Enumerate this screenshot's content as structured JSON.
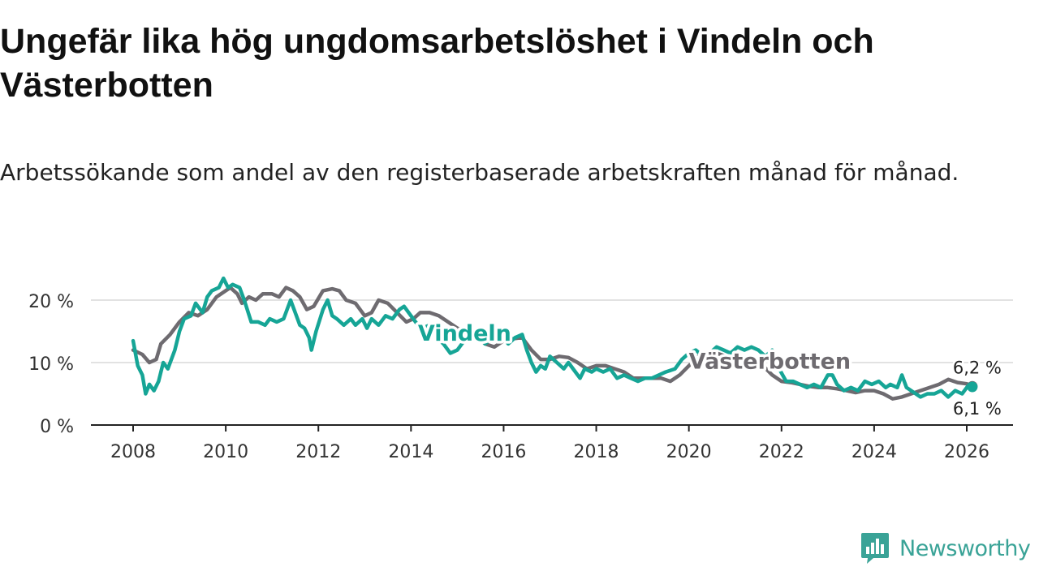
{
  "chart_data": {
    "type": "line",
    "title": "Ungefär lika hög ungdomsarbetslöshet i Vindeln och Västerbotten",
    "subtitle": "Arbetssökande som andel av den registerbaserade arbetskraften månad för månad.",
    "xlabel": "",
    "ylabel": "",
    "xlim": [
      2007.5,
      2027.0
    ],
    "ylim": [
      0,
      20
    ],
    "x_ticks": [
      2008,
      2010,
      2012,
      2014,
      2016,
      2018,
      2020,
      2022,
      2024,
      2026
    ],
    "x_tick_labels": [
      "2008",
      "2010",
      "2012",
      "2014",
      "2016",
      "2018",
      "2020",
      "2022",
      "2024",
      "2026"
    ],
    "y_ticks": [
      0,
      10,
      20
    ],
    "y_tick_labels": [
      "0 %",
      "10 %",
      "20 %"
    ],
    "grid": true,
    "series": [
      {
        "name": "Västerbotten",
        "color": "#6e6b70",
        "end_label": "6,2 %",
        "points": [
          [
            2008.0,
            12.0
          ],
          [
            2008.2,
            11.3
          ],
          [
            2008.35,
            10.0
          ],
          [
            2008.5,
            10.5
          ],
          [
            2008.6,
            13.0
          ],
          [
            2008.8,
            14.5
          ],
          [
            2009.0,
            16.5
          ],
          [
            2009.2,
            18.0
          ],
          [
            2009.4,
            17.5
          ],
          [
            2009.6,
            18.5
          ],
          [
            2009.8,
            20.5
          ],
          [
            2010.0,
            21.5
          ],
          [
            2010.1,
            22.0
          ],
          [
            2010.25,
            21.0
          ],
          [
            2010.35,
            19.5
          ],
          [
            2010.5,
            20.5
          ],
          [
            2010.65,
            20.0
          ],
          [
            2010.8,
            21.0
          ],
          [
            2011.0,
            21.0
          ],
          [
            2011.15,
            20.5
          ],
          [
            2011.3,
            22.0
          ],
          [
            2011.45,
            21.5
          ],
          [
            2011.6,
            20.5
          ],
          [
            2011.75,
            18.5
          ],
          [
            2011.9,
            19.0
          ],
          [
            2012.1,
            21.5
          ],
          [
            2012.3,
            21.8
          ],
          [
            2012.45,
            21.5
          ],
          [
            2012.6,
            20.0
          ],
          [
            2012.8,
            19.5
          ],
          [
            2013.0,
            17.5
          ],
          [
            2013.15,
            18.0
          ],
          [
            2013.3,
            20.0
          ],
          [
            2013.5,
            19.5
          ],
          [
            2013.7,
            18.0
          ],
          [
            2013.9,
            16.5
          ],
          [
            2014.05,
            17.0
          ],
          [
            2014.2,
            18.0
          ],
          [
            2014.4,
            18.0
          ],
          [
            2014.6,
            17.5
          ],
          [
            2014.8,
            16.5
          ],
          [
            2015.0,
            15.5
          ],
          [
            2015.2,
            15.0
          ],
          [
            2015.4,
            14.5
          ],
          [
            2015.6,
            13.0
          ],
          [
            2015.8,
            12.5
          ],
          [
            2016.0,
            13.5
          ],
          [
            2016.2,
            13.8
          ],
          [
            2016.4,
            14.0
          ],
          [
            2016.6,
            12.0
          ],
          [
            2016.8,
            10.5
          ],
          [
            2017.0,
            10.5
          ],
          [
            2017.2,
            11.0
          ],
          [
            2017.4,
            10.8
          ],
          [
            2017.6,
            10.0
          ],
          [
            2017.8,
            9.0
          ],
          [
            2018.0,
            9.5
          ],
          [
            2018.2,
            9.5
          ],
          [
            2018.4,
            9.0
          ],
          [
            2018.6,
            8.5
          ],
          [
            2018.8,
            7.5
          ],
          [
            2019.0,
            7.5
          ],
          [
            2019.2,
            7.5
          ],
          [
            2019.4,
            7.5
          ],
          [
            2019.6,
            7.0
          ],
          [
            2019.8,
            8.0
          ],
          [
            2020.0,
            9.5
          ],
          [
            2020.2,
            11.0
          ],
          [
            2020.4,
            11.5
          ],
          [
            2020.6,
            11.5
          ],
          [
            2020.8,
            11.0
          ],
          [
            2021.0,
            11.0
          ],
          [
            2021.2,
            10.5
          ],
          [
            2021.4,
            10.0
          ],
          [
            2021.6,
            9.5
          ],
          [
            2021.8,
            8.0
          ],
          [
            2022.0,
            7.0
          ],
          [
            2022.2,
            6.8
          ],
          [
            2022.4,
            6.5
          ],
          [
            2022.6,
            6.2
          ],
          [
            2022.8,
            6.0
          ],
          [
            2023.0,
            6.0
          ],
          [
            2023.2,
            5.8
          ],
          [
            2023.4,
            5.5
          ],
          [
            2023.6,
            5.2
          ],
          [
            2023.8,
            5.5
          ],
          [
            2024.0,
            5.5
          ],
          [
            2024.2,
            5.0
          ],
          [
            2024.4,
            4.2
          ],
          [
            2024.6,
            4.5
          ],
          [
            2024.8,
            5.0
          ],
          [
            2025.0,
            5.5
          ],
          [
            2025.2,
            6.0
          ],
          [
            2025.4,
            6.5
          ],
          [
            2025.6,
            7.3
          ],
          [
            2025.8,
            6.8
          ],
          [
            2026.0,
            6.6
          ],
          [
            2026.12,
            6.2
          ]
        ]
      },
      {
        "name": "Vindeln",
        "color": "#16a596",
        "end_label": "6,1 %",
        "points": [
          [
            2008.0,
            13.5
          ],
          [
            2008.1,
            9.5
          ],
          [
            2008.2,
            8.0
          ],
          [
            2008.27,
            5.0
          ],
          [
            2008.35,
            6.5
          ],
          [
            2008.45,
            5.5
          ],
          [
            2008.55,
            7.0
          ],
          [
            2008.65,
            10.0
          ],
          [
            2008.75,
            9.0
          ],
          [
            2008.9,
            12.0
          ],
          [
            2009.0,
            15.0
          ],
          [
            2009.1,
            17.0
          ],
          [
            2009.25,
            17.5
          ],
          [
            2009.35,
            19.5
          ],
          [
            2009.5,
            18.0
          ],
          [
            2009.6,
            20.5
          ],
          [
            2009.7,
            21.5
          ],
          [
            2009.85,
            22.0
          ],
          [
            2009.95,
            23.5
          ],
          [
            2010.05,
            22.0
          ],
          [
            2010.15,
            22.5
          ],
          [
            2010.3,
            22.0
          ],
          [
            2010.4,
            20.0
          ],
          [
            2010.55,
            16.5
          ],
          [
            2010.7,
            16.5
          ],
          [
            2010.85,
            16.0
          ],
          [
            2010.95,
            17.0
          ],
          [
            2011.1,
            16.5
          ],
          [
            2011.25,
            17.0
          ],
          [
            2011.4,
            20.0
          ],
          [
            2011.5,
            18.0
          ],
          [
            2011.6,
            16.0
          ],
          [
            2011.7,
            15.5
          ],
          [
            2011.8,
            14.0
          ],
          [
            2011.85,
            12.0
          ],
          [
            2011.95,
            15.0
          ],
          [
            2012.1,
            18.5
          ],
          [
            2012.2,
            20.0
          ],
          [
            2012.3,
            17.5
          ],
          [
            2012.4,
            17.0
          ],
          [
            2012.55,
            16.0
          ],
          [
            2012.7,
            17.0
          ],
          [
            2012.8,
            16.0
          ],
          [
            2012.95,
            17.0
          ],
          [
            2013.05,
            15.5
          ],
          [
            2013.15,
            17.0
          ],
          [
            2013.3,
            16.0
          ],
          [
            2013.45,
            17.5
          ],
          [
            2013.6,
            17.0
          ],
          [
            2013.75,
            18.5
          ],
          [
            2013.85,
            19.0
          ],
          [
            2014.0,
            17.5
          ],
          [
            2014.15,
            16.0
          ],
          [
            2014.25,
            15.5
          ],
          [
            2014.4,
            16.0
          ],
          [
            2014.55,
            14.0
          ],
          [
            2014.7,
            13.0
          ],
          [
            2014.85,
            11.5
          ],
          [
            2015.0,
            12.0
          ],
          [
            2015.15,
            13.5
          ],
          [
            2015.3,
            15.0
          ],
          [
            2015.45,
            14.5
          ],
          [
            2015.6,
            13.0
          ],
          [
            2015.75,
            14.0
          ],
          [
            2015.9,
            15.5
          ],
          [
            2016.0,
            14.0
          ],
          [
            2016.1,
            13.0
          ],
          [
            2016.25,
            14.0
          ],
          [
            2016.4,
            14.5
          ],
          [
            2016.5,
            12.0
          ],
          [
            2016.6,
            10.0
          ],
          [
            2016.7,
            8.5
          ],
          [
            2016.8,
            9.5
          ],
          [
            2016.9,
            9.0
          ],
          [
            2017.0,
            11.0
          ],
          [
            2017.15,
            10.0
          ],
          [
            2017.3,
            9.0
          ],
          [
            2017.4,
            10.0
          ],
          [
            2017.55,
            8.5
          ],
          [
            2017.65,
            7.5
          ],
          [
            2017.75,
            9.0
          ],
          [
            2017.9,
            8.5
          ],
          [
            2018.0,
            9.0
          ],
          [
            2018.15,
            8.5
          ],
          [
            2018.3,
            9.0
          ],
          [
            2018.45,
            7.5
          ],
          [
            2018.6,
            8.0
          ],
          [
            2018.75,
            7.5
          ],
          [
            2018.9,
            7.0
          ],
          [
            2019.05,
            7.5
          ],
          [
            2019.2,
            7.5
          ],
          [
            2019.35,
            8.0
          ],
          [
            2019.5,
            8.5
          ],
          [
            2019.7,
            9.0
          ],
          [
            2019.85,
            10.5
          ],
          [
            2020.0,
            11.5
          ],
          [
            2020.15,
            12.0
          ],
          [
            2020.3,
            11.0
          ],
          [
            2020.45,
            11.5
          ],
          [
            2020.6,
            12.5
          ],
          [
            2020.75,
            12.0
          ],
          [
            2020.9,
            11.5
          ],
          [
            2021.05,
            12.5
          ],
          [
            2021.2,
            12.0
          ],
          [
            2021.35,
            12.5
          ],
          [
            2021.5,
            12.0
          ],
          [
            2021.65,
            11.0
          ],
          [
            2021.8,
            12.0
          ],
          [
            2021.95,
            9.0
          ],
          [
            2022.1,
            7.0
          ],
          [
            2022.25,
            7.0
          ],
          [
            2022.4,
            6.5
          ],
          [
            2022.55,
            6.0
          ],
          [
            2022.7,
            6.5
          ],
          [
            2022.85,
            6.0
          ],
          [
            2023.0,
            8.0
          ],
          [
            2023.1,
            8.0
          ],
          [
            2023.2,
            6.5
          ],
          [
            2023.35,
            5.5
          ],
          [
            2023.5,
            6.0
          ],
          [
            2023.65,
            5.5
          ],
          [
            2023.8,
            7.0
          ],
          [
            2023.95,
            6.5
          ],
          [
            2024.1,
            7.0
          ],
          [
            2024.25,
            6.0
          ],
          [
            2024.35,
            6.5
          ],
          [
            2024.5,
            6.0
          ],
          [
            2024.6,
            8.0
          ],
          [
            2024.7,
            6.0
          ],
          [
            2024.8,
            5.5
          ],
          [
            2024.9,
            5.0
          ],
          [
            2025.0,
            4.5
          ],
          [
            2025.15,
            5.0
          ],
          [
            2025.3,
            5.0
          ],
          [
            2025.45,
            5.5
          ],
          [
            2025.6,
            4.5
          ],
          [
            2025.75,
            5.5
          ],
          [
            2025.9,
            5.0
          ],
          [
            2026.05,
            6.5
          ],
          [
            2026.12,
            6.1
          ]
        ]
      }
    ],
    "annotations": [
      {
        "text": "Vindeln",
        "x": 2014.15,
        "y": 13.5,
        "color": "#16a596"
      },
      {
        "text": "Västerbotten",
        "x": 2020.0,
        "y": 9.0,
        "color": "#6e6b70"
      }
    ]
  },
  "branding": {
    "name": "Newsworthy"
  }
}
